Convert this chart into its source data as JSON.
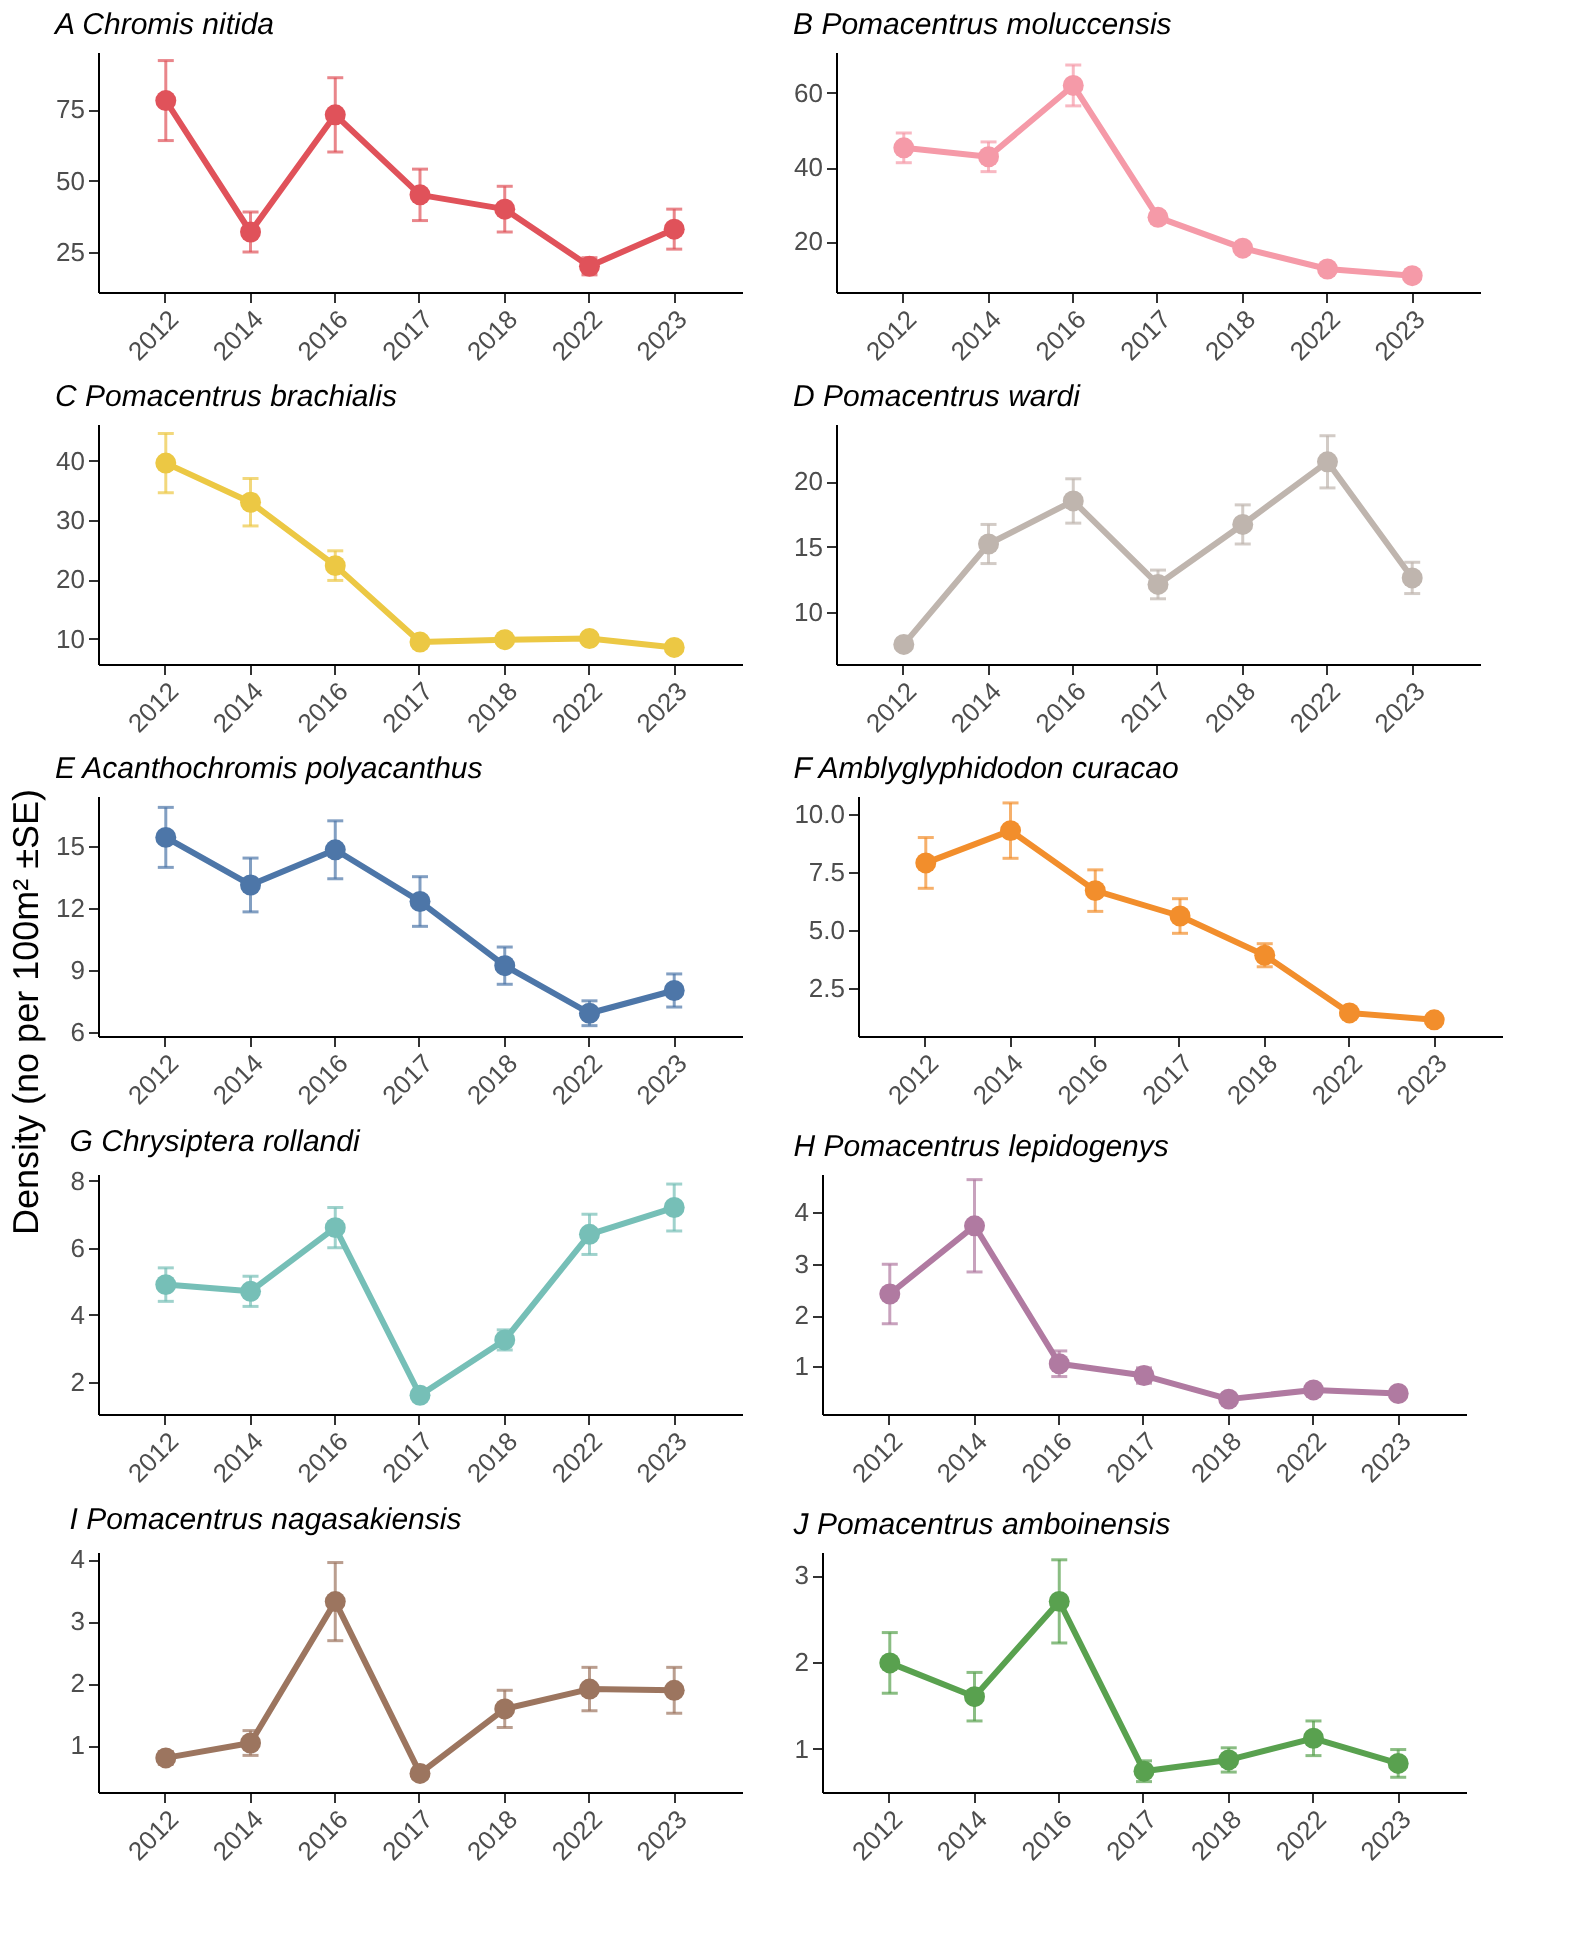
{
  "chart_data": [
    {
      "type": "line",
      "title": "A Chromis nitida",
      "categories": [
        "2012",
        "2014",
        "2016",
        "2017",
        "2018",
        "2022",
        "2023"
      ],
      "series": [
        {
          "color": "#e0525a",
          "values": [
            78,
            32,
            73,
            45,
            40,
            20,
            33
          ],
          "errors": [
            14,
            7,
            13,
            9,
            8,
            3,
            7
          ]
        }
      ],
      "ylim": [
        11,
        95
      ],
      "yticks": [
        25,
        50,
        75
      ],
      "marker": "circle",
      "line_style": "solid"
    },
    {
      "type": "line",
      "title": "B Pomacentrus moluccensis",
      "categories": [
        "2012",
        "2014",
        "2016",
        "2017",
        "2018",
        "2022",
        "2023"
      ],
      "series": [
        {
          "color": "#f59aa8",
          "values": [
            45.2,
            42.8,
            62,
            26.5,
            18.2,
            12.6,
            10.8
          ],
          "errors": [
            4,
            4,
            5.5,
            1.5,
            1,
            0.8,
            0.7
          ]
        }
      ],
      "ylim": [
        6.4,
        71
      ],
      "yticks": [
        20,
        40,
        60
      ],
      "marker": "circle",
      "line_style": "solid"
    },
    {
      "type": "line",
      "title": "C Pomacentrus brachialis",
      "categories": [
        "2012",
        "2014",
        "2016",
        "2017",
        "2018",
        "2022",
        "2023"
      ],
      "series": [
        {
          "color": "#ecc844",
          "values": [
            39.6,
            33,
            22.3,
            9.4,
            9.8,
            10,
            8.5
          ],
          "errors": [
            5,
            4,
            2.5,
            0.6,
            0.5,
            0.5,
            0.4
          ]
        }
      ],
      "ylim": [
        5.7,
        46.2
      ],
      "yticks": [
        10,
        20,
        30,
        40
      ],
      "marker": "circle",
      "line_style": "solid"
    },
    {
      "type": "line",
      "title": "D Pomacentrus wardi",
      "categories": [
        "2012",
        "2014",
        "2016",
        "2017",
        "2018",
        "2022",
        "2023"
      ],
      "series": [
        {
          "color": "#bfb5ae",
          "values": [
            7.5,
            15.2,
            18.5,
            12.1,
            16.7,
            21.5,
            12.6
          ],
          "errors": [
            0.3,
            1.5,
            1.7,
            1.1,
            1.5,
            2,
            1.2
          ]
        }
      ],
      "ylim": [
        6,
        24.4
      ],
      "yticks": [
        10,
        15,
        20
      ],
      "marker": "circle",
      "line_style": "solid"
    },
    {
      "type": "line",
      "title": "E Acanthochromis polyacanthus",
      "ylabel": "Density (no per 100m² ±SE)",
      "categories": [
        "2012",
        "2014",
        "2016",
        "2017",
        "2018",
        "2022",
        "2023"
      ],
      "series": [
        {
          "color": "#4d76a8",
          "values": [
            15.4,
            13.1,
            14.8,
            12.3,
            9.2,
            6.9,
            8.0
          ],
          "errors": [
            1.45,
            1.3,
            1.4,
            1.2,
            0.9,
            0.6,
            0.8
          ]
        }
      ],
      "ylim": [
        5.8,
        17.4
      ],
      "yticks": [
        6,
        9,
        12,
        15
      ],
      "marker": "circle",
      "line_style": "solid"
    },
    {
      "type": "line",
      "title": "F Amblyglyphidodon curacao",
      "categories": [
        "2012",
        "2014",
        "2016",
        "2017",
        "2018",
        "2022",
        "2023"
      ],
      "series": [
        {
          "color": "#f28e2c",
          "values": [
            7.9,
            9.3,
            6.7,
            5.6,
            3.9,
            1.4,
            1.1
          ],
          "errors": [
            1.1,
            1.2,
            0.9,
            0.75,
            0.5,
            0.1,
            0.1
          ]
        }
      ],
      "ylim": [
        0.4,
        10.8
      ],
      "yticks": [
        {
          "value": 2.5,
          "label": "2.5"
        },
        {
          "value": 5,
          "label": "5.0"
        },
        {
          "value": 7.5,
          "label": "7.5"
        },
        {
          "value": 10,
          "label": "10.0"
        }
      ],
      "marker": "circle",
      "line_style": "solid"
    },
    {
      "type": "line",
      "title": "G Chrysiptera rollandi",
      "categories": [
        "2012",
        "2014",
        "2016",
        "2017",
        "2018",
        "2022",
        "2023"
      ],
      "series": [
        {
          "color": "#76bfb7",
          "values": [
            4.9,
            4.7,
            6.6,
            1.6,
            3.25,
            6.4,
            7.2
          ],
          "errors": [
            0.5,
            0.45,
            0.6,
            0.1,
            0.3,
            0.6,
            0.7
          ]
        }
      ],
      "ylim": [
        1.04,
        8.2
      ],
      "yticks": [
        2,
        4,
        6,
        8
      ],
      "marker": "circle",
      "line_style": "solid"
    },
    {
      "type": "line",
      "title": "H Pomacentrus lepidogenys",
      "categories": [
        "2012",
        "2014",
        "2016",
        "2017",
        "2018",
        "2022",
        "2023"
      ],
      "series": [
        {
          "color": "#b07aa1",
          "values": [
            2.41,
            3.74,
            1.05,
            0.82,
            0.36,
            0.54,
            0.47
          ],
          "errors": [
            0.58,
            0.9,
            0.25,
            0.15,
            0.05,
            0.08,
            0.06
          ]
        }
      ],
      "ylim": [
        0.07,
        4.75
      ],
      "yticks": [
        1,
        2,
        3,
        4
      ],
      "marker": "circle",
      "line_style": "solid"
    },
    {
      "type": "line",
      "title": "I Pomacentrus nagasakiensis",
      "categories": [
        "2012",
        "2014",
        "2016",
        "2017",
        "2018",
        "2022",
        "2023"
      ],
      "series": [
        {
          "color": "#9c755f",
          "values": [
            0.8,
            1.04,
            3.32,
            0.55,
            1.59,
            1.91,
            1.89
          ],
          "errors": [
            0.1,
            0.2,
            0.63,
            0.05,
            0.3,
            0.35,
            0.37
          ]
        }
      ],
      "ylim": [
        0.25,
        4.12
      ],
      "yticks": [
        1,
        2,
        3,
        4
      ],
      "marker": "circle",
      "line_style": "solid"
    },
    {
      "type": "line",
      "title": "J Pomacentrus amboinensis",
      "categories": [
        "2012",
        "2014",
        "2016",
        "2017",
        "2018",
        "2022",
        "2023"
      ],
      "series": [
        {
          "color": "#59a14f",
          "values": [
            1.99,
            1.6,
            2.7,
            0.74,
            0.87,
            1.12,
            0.83
          ],
          "errors": [
            0.35,
            0.28,
            0.48,
            0.12,
            0.14,
            0.2,
            0.16
          ]
        }
      ],
      "ylim": [
        0.5,
        3.27
      ],
      "yticks": [
        1,
        2,
        3
      ],
      "marker": "circle",
      "line_style": "solid"
    }
  ]
}
